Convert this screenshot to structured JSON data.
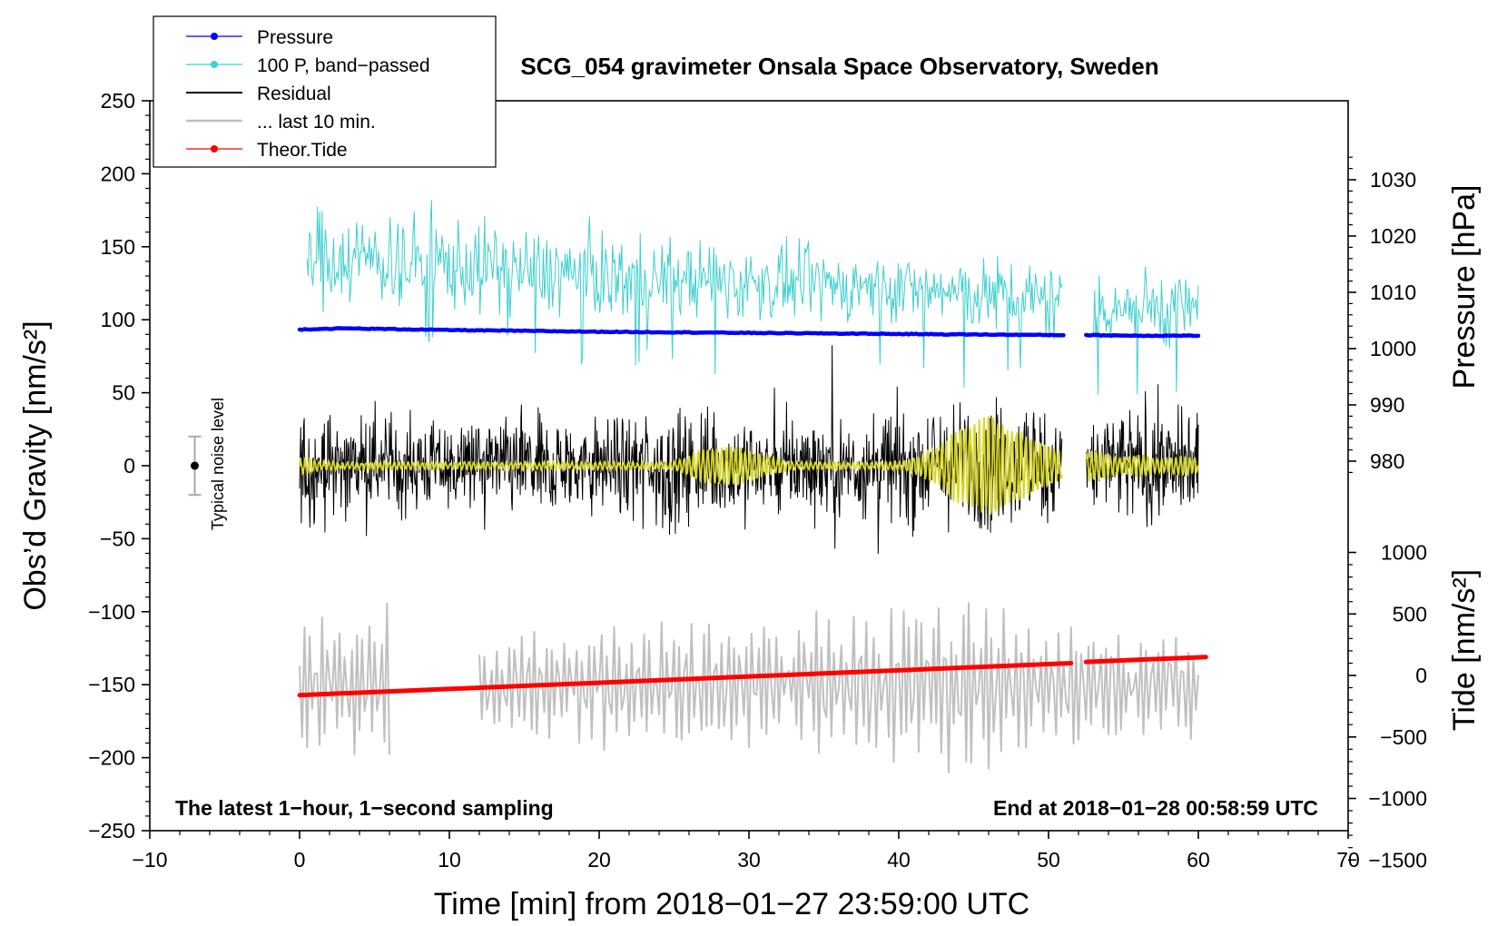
{
  "chart_data": {
    "type": "line",
    "title": "SCG_054 gravimeter Onsala Space Observatory, Sweden",
    "xlabel": "Time [min] from 2018−01−27 23:59:00 UTC",
    "ylabel_left": "Obs’d Gravity [nm/s²]",
    "ylabel_pressure": "Pressure [hPa]",
    "ylabel_tide": "Tide [nm/s²]",
    "xlim": [
      -10,
      70
    ],
    "ylim_left": [
      -250,
      250
    ],
    "x_ticks": [
      "−10",
      "0",
      "10",
      "20",
      "30",
      "40",
      "50",
      "60",
      "70"
    ],
    "y_ticks_left": [
      "250",
      "200",
      "150",
      "100",
      "50",
      "0",
      "−50",
      "−100",
      "−150",
      "−200",
      "−250"
    ],
    "pressure_ticks": [
      "1030",
      "1020",
      "1010",
      "1000",
      "990",
      "980"
    ],
    "tide_ticks": [
      "1000",
      "500",
      "0",
      "−500",
      "−1000",
      "−1500"
    ],
    "legend": {
      "placement": "top-left",
      "entries": [
        "Pressure",
        "100 P, band−passed",
        "Residual",
        "... last 10 min.",
        "Theor.Tide"
      ]
    },
    "annotation_left": "The latest 1−hour, 1−second sampling",
    "annotation_right": "End at 2018−01−28 00:58:59 UTC",
    "noise_label": "Typical noise level",
    "noise_bar": {
      "x": -7,
      "y": 0,
      "halfwidth": 20
    },
    "series": {
      "pressure_hpa": {
        "name": "Pressure",
        "color": "#0000ff",
        "segments": [
          {
            "t": [
              0,
              3,
              10,
              20,
              30,
              40,
              51
            ],
            "v": [
              1003.4,
              1003.6,
              1003.3,
              1003.0,
              1002.8,
              1002.6,
              1002.4
            ]
          },
          {
            "t": [
              52.5,
              56,
              60
            ],
            "v": [
              1002.4,
              1002.3,
              1002.3
            ]
          }
        ]
      },
      "pressure_bandpassed": {
        "name": "100 P, band−passed",
        "color": "#3fcfcf",
        "segments": [
          {
            "t0": 0.5,
            "t1": 50.9,
            "center": [
              [
                0,
                145
              ],
              [
                10,
                138
              ],
              [
                20,
                130
              ],
              [
                30,
                125
              ],
              [
                40,
                122
              ],
              [
                51,
                112
              ]
            ],
            "amp": [
              [
                0,
                28
              ],
              [
                10,
                26
              ],
              [
                25,
                22
              ],
              [
                40,
                18
              ],
              [
                51,
                24
              ]
            ]
          },
          {
            "t0": 53.0,
            "t1": 60.0,
            "center": [
              [
                53,
                110
              ],
              [
                60,
                108
              ]
            ],
            "amp": [
              [
                53,
                22
              ],
              [
                60,
                22
              ]
            ]
          }
        ]
      },
      "residual": {
        "name": "Residual",
        "color": "#000000",
        "segments": [
          {
            "t0": 0,
            "t1": 50.9,
            "amp": [
              [
                0,
                34
              ],
              [
                5,
                28
              ],
              [
                10,
                26
              ],
              [
                15,
                30
              ],
              [
                20,
                28
              ],
              [
                25,
                34
              ],
              [
                30,
                32
              ],
              [
                35,
                30
              ],
              [
                40,
                34
              ],
              [
                45,
                38
              ],
              [
                51,
                32
              ]
            ]
          },
          {
            "t0": 52.5,
            "t1": 60.0,
            "amp": [
              [
                52.5,
                30
              ],
              [
                56,
                36
              ],
              [
                60,
                30
              ]
            ]
          }
        ]
      },
      "last_10_min": {
        "name": "... last 10 min.",
        "color": "#c0c0c0",
        "segments": [
          {
            "t0": 0,
            "t1": 6,
            "amp": [
              [
                0,
                50
              ],
              [
                6,
                60
              ]
            ],
            "center": -150
          },
          {
            "t0": 12,
            "t1": 60,
            "amp": [
              [
                12,
                30
              ],
              [
                20,
                45
              ],
              [
                30,
                45
              ],
              [
                40,
                60
              ],
              [
                45,
                70
              ],
              [
                50,
                45
              ],
              [
                55,
                40
              ],
              [
                60,
                40
              ]
            ],
            "center": -150
          }
        ]
      },
      "theoretical_tide": {
        "name": "Theor.Tide",
        "color": "#ff0000",
        "segments": [
          {
            "t": [
              0,
              51.5
            ],
            "v": [
              -160,
              100
            ]
          },
          {
            "t": [
              52.5,
              60.5
            ],
            "v": [
              110,
              150
            ]
          }
        ]
      },
      "filtered_residual": {
        "name": "",
        "color": "#d9d92a",
        "segments": [
          {
            "t0": 0,
            "t1": 50.9,
            "bursts": [
              [
                0,
                3
              ],
              [
                27,
                8
              ],
              [
                29,
                10
              ],
              [
                31,
                4
              ],
              [
                42,
                6
              ],
              [
                44,
                20
              ],
              [
                46,
                28
              ],
              [
                48,
                18
              ],
              [
                50,
                10
              ]
            ]
          },
          {
            "t0": 52.5,
            "t1": 60.0,
            "bursts": [
              [
                53,
                8
              ],
              [
                56,
                5
              ],
              [
                59,
                4
              ]
            ]
          }
        ]
      }
    }
  }
}
